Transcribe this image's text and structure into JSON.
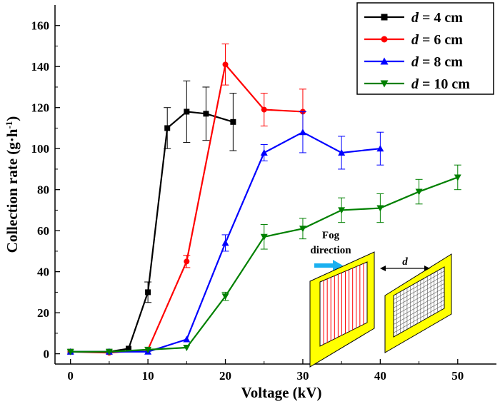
{
  "chart_data": {
    "type": "line",
    "xlabel": "Voltage (kV)",
    "ylabel": "Collection rate (g·h",
    "ylabel_sup": "-1",
    "ylabel_end": ")",
    "xlim": [
      -2,
      55
    ],
    "ylim": [
      -5,
      170
    ],
    "xticks": [
      0,
      10,
      20,
      30,
      40,
      50
    ],
    "yticks": [
      0,
      20,
      40,
      60,
      80,
      100,
      120,
      140,
      160
    ],
    "grid": false,
    "legend_position": "top-right",
    "series": [
      {
        "label_var": "d",
        "label_rest": " = 4 cm",
        "color": "#000000",
        "marker": "square",
        "points": [
          [
            0,
            1
          ],
          [
            5,
            1
          ],
          [
            7.5,
            2.5
          ],
          [
            10,
            30
          ],
          [
            12.5,
            110
          ],
          [
            15,
            118
          ],
          [
            17.5,
            117
          ],
          [
            21,
            113
          ]
        ],
        "err": [
          0,
          0,
          0,
          5,
          10,
          15,
          13,
          14
        ]
      },
      {
        "label_var": "d",
        "label_rest": " = 6 cm",
        "color": "#ff0000",
        "marker": "circle",
        "points": [
          [
            0,
            1
          ],
          [
            5,
            0.5
          ],
          [
            10,
            2
          ],
          [
            15,
            45
          ],
          [
            20,
            141
          ],
          [
            25,
            119
          ],
          [
            30,
            118
          ]
        ],
        "err": [
          0,
          0,
          0,
          3,
          10,
          8,
          11
        ]
      },
      {
        "label_var": "d",
        "label_rest": " = 8 cm",
        "color": "#0000ff",
        "marker": "triangle-up",
        "points": [
          [
            0,
            1
          ],
          [
            5,
            1
          ],
          [
            10,
            1
          ],
          [
            15,
            7
          ],
          [
            20,
            54
          ],
          [
            25,
            98
          ],
          [
            30,
            108
          ],
          [
            35,
            98
          ],
          [
            40,
            100
          ]
        ],
        "err": [
          0,
          0,
          0,
          0,
          4,
          4,
          10,
          8,
          8
        ]
      },
      {
        "label_var": "d",
        "label_rest": " = 10 cm",
        "color": "#008000",
        "marker": "triangle-down",
        "points": [
          [
            0,
            1
          ],
          [
            5,
            1
          ],
          [
            10,
            2
          ],
          [
            15,
            3
          ],
          [
            20,
            28
          ],
          [
            25,
            57
          ],
          [
            30,
            61
          ],
          [
            35,
            70
          ],
          [
            40,
            71
          ],
          [
            45,
            79
          ],
          [
            50,
            86
          ]
        ],
        "err": [
          0,
          0,
          0,
          0,
          2,
          6,
          5,
          6,
          7,
          6,
          6
        ]
      }
    ]
  },
  "inset": {
    "fog_label_1": "Fog",
    "fog_label_2": "direction",
    "distance_label": "d",
    "frame_color": "#ffff00",
    "arrow_color": "#1ab0f0",
    "wire_color": "#ff0000"
  }
}
